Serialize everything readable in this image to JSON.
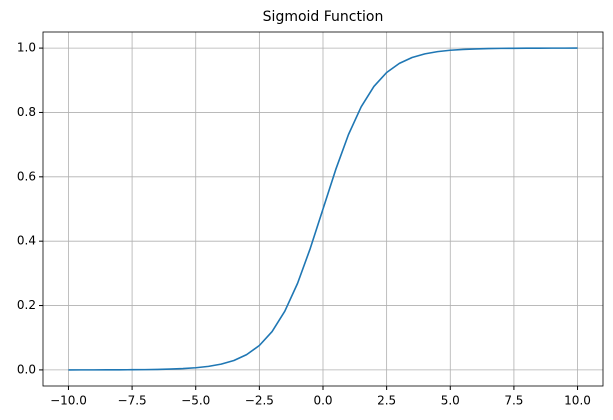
{
  "chart_data": {
    "type": "line",
    "title": "Sigmoid Function",
    "x": [
      -10,
      -9.5,
      -9,
      -8.5,
      -8,
      -7.5,
      -7,
      -6.5,
      -6,
      -5.5,
      -5,
      -4.5,
      -4,
      -3.5,
      -3,
      -2.5,
      -2,
      -1.5,
      -1,
      -0.5,
      0,
      0.5,
      1,
      1.5,
      2,
      2.5,
      3,
      3.5,
      4,
      4.5,
      5,
      5.5,
      6,
      6.5,
      7,
      7.5,
      8,
      8.5,
      9,
      9.5,
      10
    ],
    "values": [
      4.54e-05,
      7.49e-05,
      0.000123,
      0.000203,
      0.000335,
      0.000553,
      0.000911,
      0.0015,
      0.00247,
      0.00407,
      0.00669,
      0.011,
      0.018,
      0.0293,
      0.0474,
      0.0759,
      0.1192,
      0.1824,
      0.2689,
      0.3775,
      0.5,
      0.6225,
      0.7311,
      0.8176,
      0.8808,
      0.9241,
      0.9526,
      0.9707,
      0.982,
      0.989,
      0.9933,
      0.9959,
      0.9975,
      0.9985,
      0.9991,
      0.9994,
      0.9997,
      0.9998,
      0.9999,
      0.9999,
      1.0
    ],
    "color": "#1f77b4",
    "xlim": [
      -11,
      11
    ],
    "ylim": [
      -0.05,
      1.05
    ],
    "xticks": [
      {
        "value": -10,
        "label": "−10.0"
      },
      {
        "value": -7.5,
        "label": "−7.5"
      },
      {
        "value": -5,
        "label": "−5.0"
      },
      {
        "value": -2.5,
        "label": "−2.5"
      },
      {
        "value": 0,
        "label": "0.0"
      },
      2.5,
      {
        "value": 5,
        "label": "5.0"
      },
      7.5,
      {
        "value": 10,
        "label": "10.0"
      }
    ],
    "yticks": [
      {
        "value": 0,
        "label": "0.0"
      },
      0.2,
      0.4,
      0.6,
      0.8,
      {
        "value": 1,
        "label": "1.0"
      }
    ],
    "grid": true
  }
}
